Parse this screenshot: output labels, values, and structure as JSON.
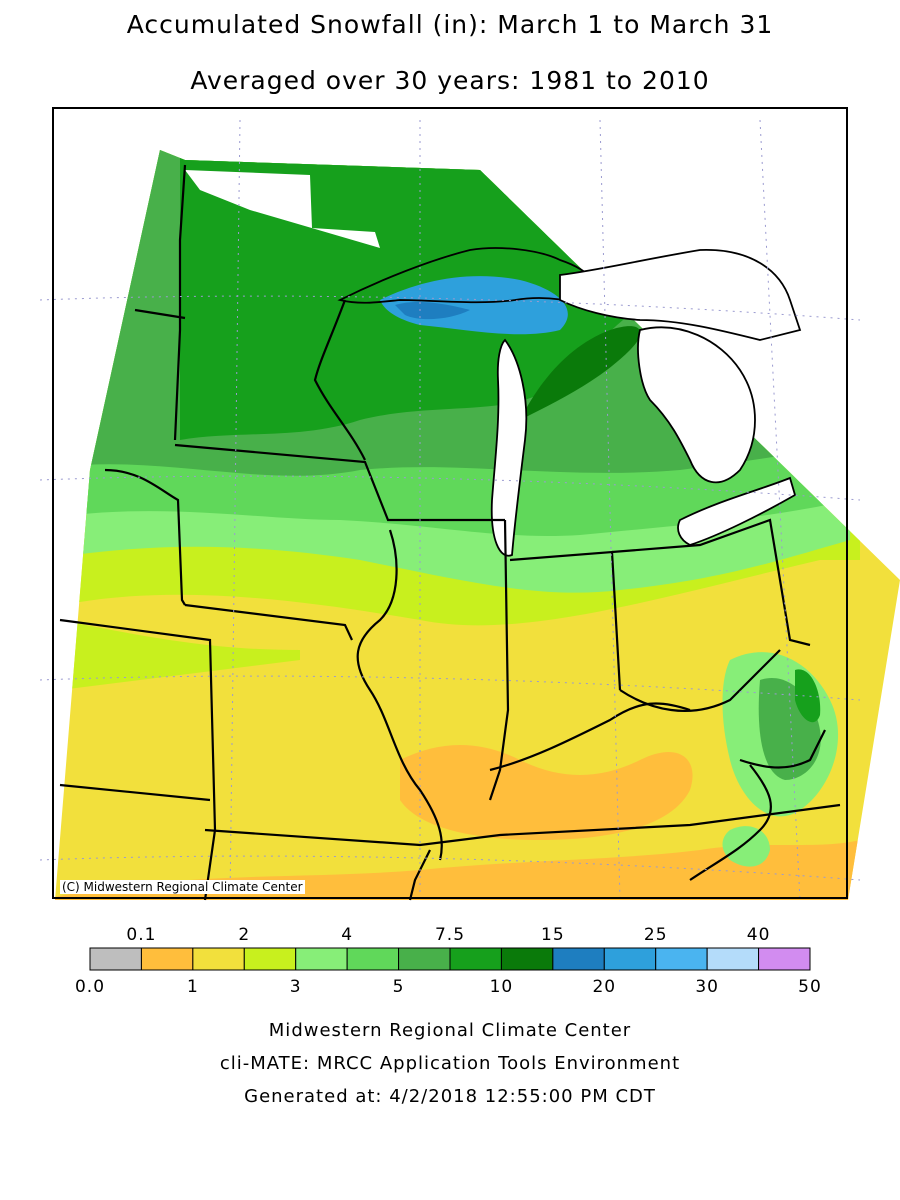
{
  "title": "Accumulated Snowfall (in): March 1 to March 31",
  "subtitle": "Averaged over 30 years: 1981 to 2010",
  "copyright": "(C) Midwestern Regional Climate Center",
  "footer": {
    "line1": "Midwestern Regional Climate Center",
    "line2": "cli-MATE: MRCC Application Tools Environment",
    "line3": "Generated at: 4/2/2018 12:55:00 PM CDT"
  },
  "legend": {
    "upper_labels": [
      "0.1",
      "2",
      "4",
      "7.5",
      "15",
      "25",
      "40"
    ],
    "lower_labels": [
      "0.0",
      "1",
      "3",
      "5",
      "10",
      "20",
      "30",
      "50"
    ],
    "colors": [
      "#bebebe",
      "#ffbe3c",
      "#f2e03c",
      "#c8f01e",
      "#87ee78",
      "#60d85a",
      "#48b04a",
      "#16a01c",
      "#0a7a0a",
      "#1e7ec0",
      "#2ea0dc",
      "#4ab4f0",
      "#b4dcfa",
      "#d28cf0"
    ]
  },
  "palette": {
    "land_base": "#f2e03c",
    "lake_water": "#ffffff"
  }
}
